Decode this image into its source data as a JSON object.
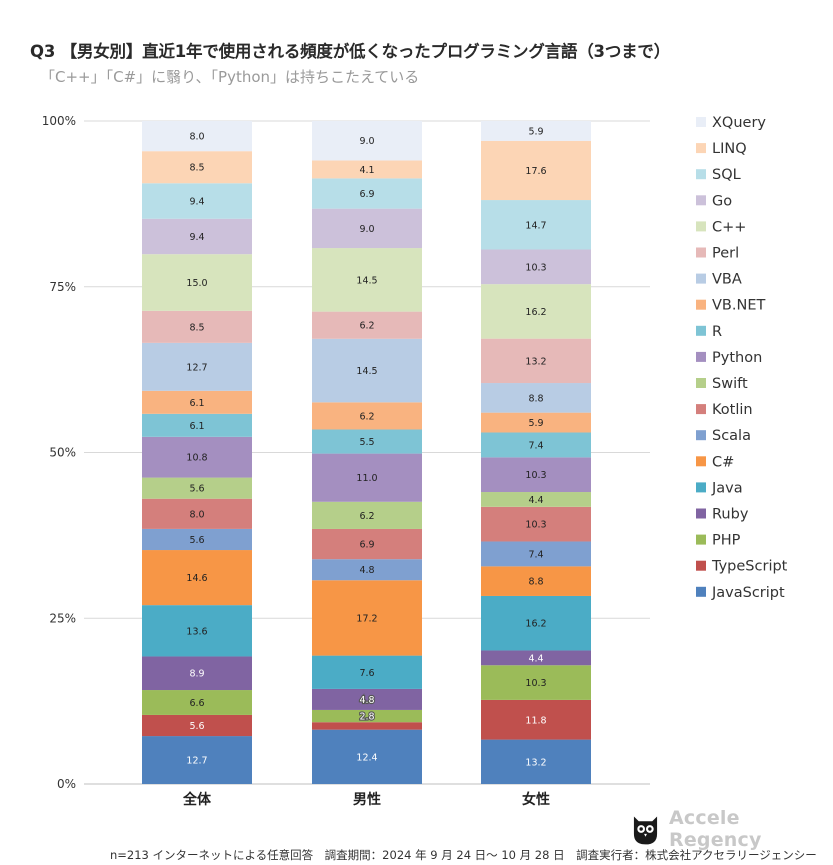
{
  "title": "Q3 【男女別】直近1年で使用される頻度が低くなったプログラミング言語（3つまで）",
  "subtitle": "「C++」「C#」に翳り、「Python」は持ちこたえている",
  "footnote": "n=213 インターネットによる任意回答　調査期間：2024 年 9 月 24 日～ 10 月 28 日　調査実行者：株式会社アクセラリージェンシー",
  "brand": {
    "name": "Accele Regency",
    "icon": "owl-logo-icon"
  },
  "chart_data": {
    "type": "bar",
    "stacked": true,
    "normalized": true,
    "categories": [
      "全体",
      "男性",
      "女性"
    ],
    "yticks": [
      "0%",
      "25%",
      "50%",
      "75%",
      "100%"
    ],
    "ylim": [
      0,
      100
    ],
    "grid": true,
    "legend_position": "right",
    "series": [
      {
        "name": "JavaScript",
        "color": "#4F81BD",
        "label_color": "#ffffff",
        "values": [
          12.7,
          12.4,
          13.2
        ]
      },
      {
        "name": "TypeScript",
        "color": "#C0504D",
        "label_color": "#ffffff",
        "values": [
          5.6,
          1.7,
          11.8
        ]
      },
      {
        "name": "PHP",
        "color": "#9BBB59",
        "label_color": "#222222",
        "values": [
          6.6,
          2.8,
          10.3
        ]
      },
      {
        "name": "Ruby",
        "color": "#8064A2",
        "label_color": "#ffffff",
        "values": [
          8.9,
          4.8,
          4.4
        ]
      },
      {
        "name": "Java",
        "color": "#4BACC6",
        "label_color": "#222222",
        "values": [
          13.6,
          7.6,
          16.2
        ]
      },
      {
        "name": "C#",
        "color": "#F79646",
        "label_color": "#222222",
        "values": [
          14.6,
          17.2,
          8.8
        ]
      },
      {
        "name": "Scala",
        "color": "#7FA0D0",
        "label_color": "#222222",
        "values": [
          5.6,
          4.8,
          7.4
        ]
      },
      {
        "name": "Kotlin",
        "color": "#D47F7C",
        "label_color": "#222222",
        "values": [
          8.0,
          6.9,
          10.3
        ]
      },
      {
        "name": "Swift",
        "color": "#B5CF8A",
        "label_color": "#222222",
        "values": [
          5.6,
          6.2,
          4.4
        ]
      },
      {
        "name": "Python",
        "color": "#A48FC0",
        "label_color": "#222222",
        "values": [
          10.8,
          11.0,
          10.3
        ]
      },
      {
        "name": "R",
        "color": "#7EC4D5",
        "label_color": "#222222",
        "values": [
          6.1,
          5.5,
          7.4
        ]
      },
      {
        "name": "VB.NET",
        "color": "#F9B380",
        "label_color": "#222222",
        "values": [
          6.1,
          6.2,
          5.9
        ]
      },
      {
        "name": "VBA",
        "color": "#B8CCE4",
        "label_color": "#222222",
        "values": [
          12.7,
          14.5,
          8.8
        ]
      },
      {
        "name": "Perl",
        "color": "#E6B9B8",
        "label_color": "#222222",
        "values": [
          8.5,
          6.2,
          13.2
        ]
      },
      {
        "name": "C++",
        "color": "#D7E4BD",
        "label_color": "#222222",
        "values": [
          15.0,
          14.5,
          16.2
        ]
      },
      {
        "name": "Go",
        "color": "#CCC1DA",
        "label_color": "#222222",
        "values": [
          9.4,
          9.0,
          10.3
        ]
      },
      {
        "name": "SQL",
        "color": "#B7DEE8",
        "label_color": "#222222",
        "values": [
          9.4,
          6.9,
          14.7
        ]
      },
      {
        "name": "LINQ",
        "color": "#FCD5B5",
        "label_color": "#222222",
        "values": [
          8.5,
          4.1,
          17.6
        ]
      },
      {
        "name": "XQuery",
        "color": "#E9EEF7",
        "label_color": "#222222",
        "values": [
          8.0,
          9.0,
          5.9
        ]
      }
    ],
    "labels_override": {
      "1": {
        "TypeScript": ""
      }
    },
    "outlined_labels": {
      "1": [
        "Ruby",
        "PHP"
      ]
    }
  }
}
